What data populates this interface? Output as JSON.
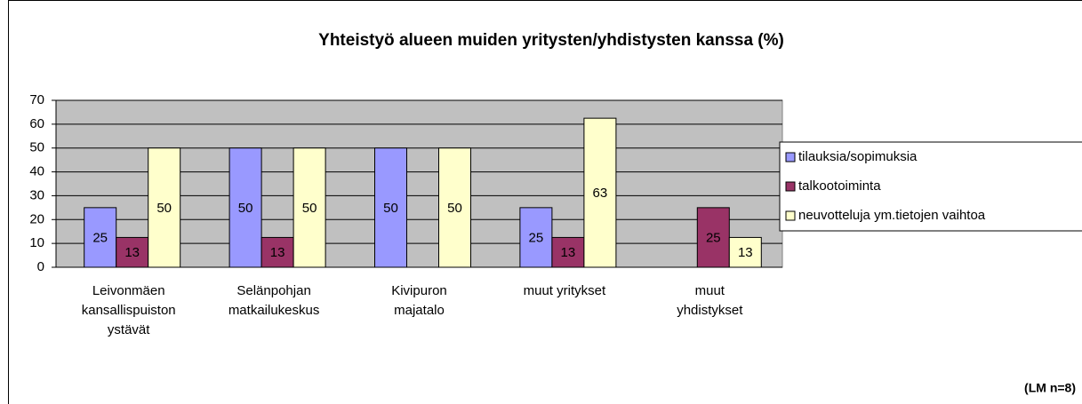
{
  "chart_data": {
    "type": "bar",
    "title": "Yhteistyö alueen muiden yritysten/yhdistysten kanssa (%)",
    "note": "(LM n=8)",
    "categories": [
      "Leivonmäen kansallispuiston ystävät",
      "Selänpohjan matkailukeskus",
      "Kivipuron majatalo",
      "muut yritykset",
      "muut yhdistykset"
    ],
    "series": [
      {
        "name": "tilauksia/sopimuksia",
        "color": "#9999ff",
        "values": [
          25,
          50,
          50,
          25,
          null
        ],
        "value_labels": [
          "25",
          "50",
          "50",
          "25",
          null
        ]
      },
      {
        "name": "talkootoiminta",
        "color": "#993366",
        "values": [
          12.5,
          12.5,
          null,
          12.5,
          25
        ],
        "value_labels": [
          "13",
          "13",
          null,
          "13",
          "25"
        ]
      },
      {
        "name": "neuvotteluja ym.tietojen vaihtoa",
        "color": "#ffffcc",
        "values": [
          50,
          50,
          50,
          62.5,
          12.5
        ],
        "value_labels": [
          "50",
          "50",
          "50",
          "63",
          "13"
        ]
      }
    ],
    "ylim": [
      0,
      70
    ],
    "yticks": [
      0,
      10,
      20,
      30,
      40,
      50,
      60,
      70
    ],
    "grid": true,
    "legend": "right"
  }
}
